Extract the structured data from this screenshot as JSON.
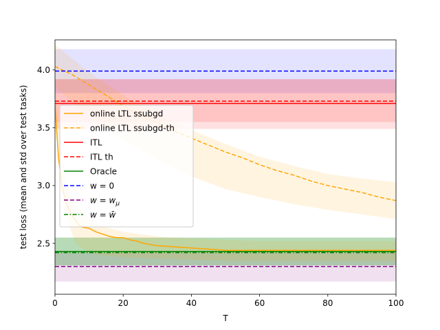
{
  "chart_data": {
    "type": "line",
    "xlabel": "T",
    "ylabel": "test loss (mean and std over test tasks)",
    "xlim": [
      0,
      100
    ],
    "ylim": [
      2.06,
      4.26
    ],
    "xticks": [
      0,
      20,
      40,
      60,
      80,
      100
    ],
    "yticks": [
      2.5,
      3.0,
      3.5,
      4.0
    ],
    "xtick_labels": [
      "0",
      "20",
      "40",
      "60",
      "80",
      "100"
    ],
    "ytick_labels": [
      "2.5",
      "3.0",
      "3.5",
      "4.0"
    ],
    "grid": false,
    "legend_position": "center-left",
    "bands": [
      {
        "name": "w = 0 std",
        "color": "#0000ff",
        "opacity": 0.11,
        "y0": 3.8,
        "y1": 4.18
      },
      {
        "name": "ITL th std",
        "color": "#ff0000",
        "opacity": 0.12,
        "y0": 3.55,
        "y1": 3.92
      },
      {
        "name": "ITL std",
        "color": "#ff0000",
        "opacity": 0.12,
        "y0": 3.49,
        "y1": 3.92
      },
      {
        "name": "w = w_mu std",
        "color": "#800080",
        "opacity": 0.12,
        "y0": 2.17,
        "y1": 2.42
      },
      {
        "name": "Oracle std",
        "color": "#008000",
        "opacity": 0.18,
        "y0": 2.31,
        "y1": 2.55
      },
      {
        "name": "w = w_bar std",
        "color": "#008000",
        "opacity": 0.12,
        "y0": 2.31,
        "y1": 2.55
      }
    ],
    "curve_bands": [
      {
        "name": "online LTL ssubgd-th std",
        "color": "#ffa500",
        "opacity": 0.12,
        "x": [
          0,
          10,
          20,
          30,
          40,
          50,
          60,
          70,
          80,
          90,
          100
        ],
        "lower": [
          3.85,
          3.6,
          3.4,
          3.22,
          3.08,
          2.97,
          2.9,
          2.84,
          2.79,
          2.75,
          2.71
        ],
        "upper": [
          4.22,
          3.98,
          3.78,
          3.62,
          3.48,
          3.36,
          3.25,
          3.17,
          3.1,
          3.06,
          3.03
        ]
      },
      {
        "name": "online LTL ssubgd std",
        "color": "#ffa500",
        "opacity": 0.12,
        "x": [
          0,
          3,
          6,
          10,
          15,
          20,
          30,
          40,
          50,
          60,
          80,
          100
        ],
        "lower": [
          3.55,
          2.75,
          2.5,
          2.42,
          2.39,
          2.38,
          2.37,
          2.36,
          2.35,
          2.35,
          2.35,
          2.35
        ],
        "upper": [
          3.9,
          3.05,
          2.82,
          2.72,
          2.64,
          2.6,
          2.56,
          2.54,
          2.53,
          2.52,
          2.52,
          2.52
        ]
      }
    ],
    "series": [
      {
        "name": "online LTL ssubgd",
        "color": "#ffa500",
        "style": "solid",
        "x": [
          0,
          1,
          2,
          3,
          4,
          5,
          6,
          7,
          8,
          10,
          12,
          14,
          16,
          18,
          20,
          22,
          24,
          26,
          28,
          30,
          35,
          40,
          45,
          50,
          60,
          70,
          80,
          90,
          100
        ],
        "y": [
          3.7,
          3.25,
          3.0,
          2.88,
          2.8,
          2.74,
          2.7,
          2.66,
          2.64,
          2.63,
          2.6,
          2.58,
          2.56,
          2.55,
          2.55,
          2.53,
          2.52,
          2.5,
          2.49,
          2.48,
          2.47,
          2.46,
          2.45,
          2.44,
          2.44,
          2.44,
          2.44,
          2.44,
          2.44
        ]
      },
      {
        "name": "online LTL ssubgd-th",
        "color": "#ffa500",
        "style": "dashed",
        "x": [
          0,
          5,
          10,
          15,
          20,
          25,
          30,
          35,
          40,
          45,
          50,
          55,
          60,
          65,
          70,
          75,
          80,
          85,
          90,
          95,
          100
        ],
        "y": [
          4.03,
          3.96,
          3.87,
          3.78,
          3.69,
          3.61,
          3.54,
          3.47,
          3.41,
          3.35,
          3.29,
          3.24,
          3.18,
          3.13,
          3.09,
          3.04,
          3.0,
          2.97,
          2.94,
          2.9,
          2.87
        ]
      },
      {
        "name": "ITL",
        "color": "#ff0000",
        "style": "solid",
        "x": [
          0,
          100
        ],
        "y": [
          3.71,
          3.71
        ]
      },
      {
        "name": "ITL th",
        "color": "#ff0000",
        "style": "dashed",
        "x": [
          0,
          100
        ],
        "y": [
          3.73,
          3.73
        ]
      },
      {
        "name": "Oracle",
        "color": "#008000",
        "style": "solid",
        "x": [
          0,
          100
        ],
        "y": [
          2.43,
          2.43
        ]
      },
      {
        "name": "w = 0",
        "color": "#0000ff",
        "style": "dashed",
        "x": [
          0,
          100
        ],
        "y": [
          3.99,
          3.99
        ]
      },
      {
        "name": "w_mu",
        "color": "#800080",
        "style": "dashed",
        "x": [
          0,
          100
        ],
        "y": [
          2.3,
          2.3
        ]
      },
      {
        "name": "w_bar",
        "color": "#008000",
        "style": "dashdot",
        "x": [
          0,
          100
        ],
        "y": [
          2.42,
          2.42
        ]
      }
    ],
    "legend": [
      {
        "label": "online LTL ssubgd",
        "color": "#ffa500",
        "style": "solid"
      },
      {
        "label": "online LTL ssubgd-th",
        "color": "#ffa500",
        "style": "dashed"
      },
      {
        "label": "ITL",
        "color": "#ff0000",
        "style": "solid"
      },
      {
        "label": "ITL th",
        "color": "#ff0000",
        "style": "dashed"
      },
      {
        "label": "Oracle",
        "color": "#008000",
        "style": "solid"
      },
      {
        "label": "w = 0",
        "color": "#0000ff",
        "style": "dashed"
      },
      {
        "label": "w = w_mu",
        "color": "#800080",
        "style": "dashed"
      },
      {
        "label": "w = w_bar",
        "color": "#008000",
        "style": "dashdot"
      }
    ]
  }
}
